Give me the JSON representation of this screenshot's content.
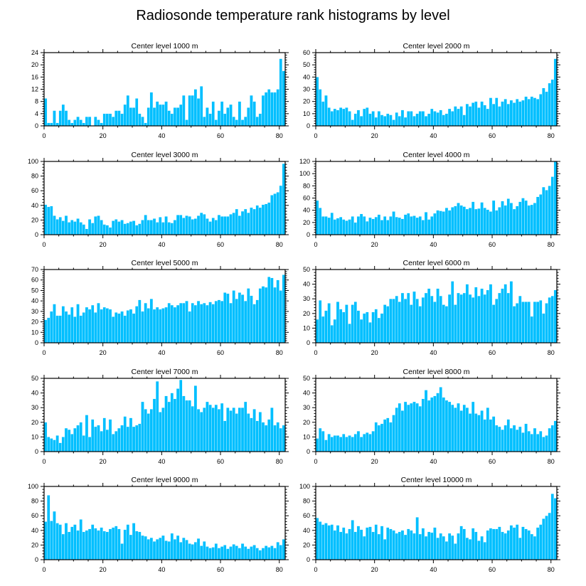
{
  "title": "Radiosonde temperature rank histograms by level",
  "colors": {
    "bar": "#00BFFF",
    "axis": "#000000",
    "background": "#ffffff"
  },
  "chart_data": [
    {
      "type": "bar",
      "title": "Center level 1000 m",
      "xlim": [
        0,
        82
      ],
      "ylim": [
        0,
        24
      ],
      "yticks": [
        0,
        4,
        8,
        12,
        16,
        20,
        24
      ],
      "xticks": [
        0,
        20,
        40,
        60,
        80
      ],
      "values": [
        9,
        1,
        1,
        5,
        1,
        5,
        7,
        5,
        2,
        1,
        2,
        3,
        2,
        1,
        3,
        3,
        0,
        3,
        2,
        1,
        4,
        4,
        4,
        3,
        5,
        5,
        4,
        7,
        10,
        6,
        6,
        9,
        4,
        3,
        1,
        6,
        11,
        6,
        8,
        7,
        7,
        8,
        5,
        4,
        6,
        6,
        7,
        10,
        2,
        10,
        10,
        12,
        9,
        13,
        3,
        6,
        4,
        8,
        2,
        5,
        8,
        4,
        6,
        7,
        3,
        2,
        8,
        2,
        3,
        6,
        10,
        8,
        3,
        4,
        10,
        11,
        12,
        11,
        11,
        12,
        22,
        18
      ],
      "xlabel": "",
      "ylabel": ""
    },
    {
      "type": "bar",
      "title": "Center level 2000 m",
      "xlim": [
        0,
        82
      ],
      "ylim": [
        0,
        60
      ],
      "yticks": [
        0,
        10,
        20,
        30,
        40,
        50,
        60
      ],
      "xticks": [
        0,
        20,
        40,
        60,
        80
      ],
      "values": [
        40,
        30,
        20,
        25,
        15,
        12,
        14,
        13,
        15,
        14,
        15,
        12,
        5,
        10,
        13,
        8,
        14,
        15,
        10,
        12,
        7,
        12,
        9,
        8,
        10,
        9,
        5,
        11,
        8,
        13,
        7,
        12,
        12,
        8,
        10,
        12,
        12,
        8,
        10,
        14,
        12,
        11,
        13,
        9,
        10,
        14,
        12,
        16,
        14,
        16,
        9,
        18,
        16,
        19,
        20,
        15,
        20,
        17,
        14,
        23,
        18,
        23,
        16,
        20,
        22,
        18,
        21,
        19,
        22,
        20,
        21,
        24,
        22,
        24,
        23,
        22,
        26,
        31,
        28,
        35,
        38,
        55
      ],
      "xlabel": "",
      "ylabel": ""
    },
    {
      "type": "bar",
      "title": "Center level 3000 m",
      "xlim": [
        0,
        82
      ],
      "ylim": [
        0,
        100
      ],
      "yticks": [
        0,
        20,
        40,
        60,
        80,
        100
      ],
      "xticks": [
        0,
        20,
        40,
        60,
        80
      ],
      "values": [
        41,
        38,
        39,
        26,
        21,
        24,
        19,
        26,
        17,
        20,
        18,
        22,
        17,
        14,
        8,
        21,
        16,
        25,
        26,
        20,
        14,
        13,
        10,
        19,
        21,
        18,
        20,
        15,
        16,
        18,
        19,
        13,
        15,
        20,
        27,
        20,
        20,
        22,
        17,
        24,
        17,
        25,
        17,
        16,
        20,
        27,
        27,
        23,
        26,
        25,
        21,
        22,
        26,
        30,
        28,
        22,
        18,
        23,
        20,
        27,
        25,
        25,
        25,
        28,
        30,
        35,
        26,
        32,
        35,
        30,
        37,
        35,
        40,
        37,
        41,
        42,
        44,
        54,
        56,
        58,
        67,
        97
      ],
      "xlabel": "",
      "ylabel": ""
    },
    {
      "type": "bar",
      "title": "Center level 4000 m",
      "xlim": [
        0,
        82
      ],
      "ylim": [
        0,
        120
      ],
      "yticks": [
        0,
        20,
        40,
        60,
        80,
        100,
        120
      ],
      "xticks": [
        0,
        20,
        40,
        60,
        80
      ],
      "values": [
        56,
        44,
        30,
        30,
        28,
        36,
        25,
        27,
        29,
        25,
        23,
        25,
        30,
        20,
        30,
        34,
        30,
        22,
        28,
        26,
        29,
        33,
        24,
        30,
        24,
        30,
        38,
        29,
        28,
        26,
        33,
        35,
        30,
        31,
        28,
        30,
        24,
        37,
        25,
        30,
        35,
        40,
        39,
        38,
        44,
        40,
        45,
        47,
        52,
        48,
        46,
        42,
        44,
        54,
        42,
        43,
        53,
        44,
        41,
        38,
        56,
        40,
        45,
        55,
        48,
        59,
        52,
        42,
        47,
        54,
        60,
        56,
        48,
        49,
        52,
        62,
        66,
        78,
        73,
        80,
        95,
        120
      ],
      "xlabel": "",
      "ylabel": ""
    },
    {
      "type": "bar",
      "title": "Center level 5000 m",
      "xlim": [
        0,
        82
      ],
      "ylim": [
        0,
        70
      ],
      "yticks": [
        0,
        10,
        20,
        30,
        40,
        50,
        60,
        70
      ],
      "xticks": [
        0,
        20,
        40,
        60,
        80
      ],
      "values": [
        22,
        24,
        30,
        37,
        26,
        26,
        35,
        30,
        27,
        34,
        25,
        37,
        26,
        29,
        34,
        32,
        36,
        29,
        38,
        32,
        34,
        33,
        32,
        25,
        29,
        28,
        30,
        26,
        31,
        32,
        28,
        35,
        41,
        30,
        38,
        33,
        42,
        32,
        34,
        32,
        33,
        34,
        38,
        36,
        34,
        36,
        38,
        38,
        40,
        30,
        38,
        36,
        40,
        37,
        38,
        36,
        39,
        37,
        40,
        41,
        40,
        48,
        47,
        38,
        50,
        42,
        48,
        46,
        40,
        52,
        45,
        37,
        41,
        52,
        54,
        53,
        63,
        62,
        53,
        60,
        50,
        65
      ],
      "xlabel": "",
      "ylabel": ""
    },
    {
      "type": "bar",
      "title": "Center level 6000 m",
      "xlim": [
        0,
        82
      ],
      "ylim": [
        0,
        50
      ],
      "yticks": [
        0,
        10,
        20,
        30,
        40,
        50
      ],
      "xticks": [
        0,
        20,
        40,
        60,
        80
      ],
      "values": [
        16,
        29,
        18,
        22,
        27,
        12,
        16,
        28,
        23,
        21,
        26,
        13,
        26,
        28,
        22,
        16,
        20,
        21,
        14,
        21,
        23,
        17,
        20,
        26,
        25,
        30,
        30,
        32,
        28,
        34,
        30,
        34,
        26,
        35,
        30,
        25,
        31,
        34,
        37,
        32,
        28,
        37,
        32,
        26,
        25,
        33,
        42,
        26,
        34,
        33,
        34,
        40,
        33,
        31,
        38,
        32,
        37,
        33,
        36,
        40,
        26,
        30,
        34,
        37,
        40,
        34,
        42,
        25,
        27,
        32,
        28,
        28,
        28,
        18,
        28,
        28,
        29,
        20,
        27,
        31,
        32,
        36
      ],
      "xlabel": "",
      "ylabel": ""
    },
    {
      "type": "bar",
      "title": "Center level 7000 m",
      "xlim": [
        0,
        82
      ],
      "ylim": [
        0,
        50
      ],
      "yticks": [
        0,
        10,
        20,
        30,
        40,
        50
      ],
      "xticks": [
        0,
        20,
        40,
        60,
        80
      ],
      "values": [
        20,
        10,
        9,
        8,
        11,
        6,
        10,
        16,
        15,
        12,
        16,
        18,
        20,
        11,
        25,
        10,
        22,
        17,
        18,
        14,
        23,
        15,
        22,
        12,
        14,
        16,
        18,
        24,
        17,
        23,
        17,
        18,
        19,
        34,
        29,
        26,
        29,
        36,
        48,
        27,
        30,
        38,
        34,
        40,
        36,
        43,
        49,
        38,
        35,
        35,
        31,
        45,
        29,
        27,
        30,
        34,
        32,
        30,
        32,
        29,
        33,
        21,
        30,
        28,
        30,
        26,
        30,
        30,
        34,
        26,
        23,
        29,
        21,
        27,
        20,
        18,
        22,
        30,
        18,
        20,
        16,
        18
      ],
      "xlabel": "",
      "ylabel": ""
    },
    {
      "type": "bar",
      "title": "Center level 8000 m",
      "xlim": [
        0,
        82
      ],
      "ylim": [
        0,
        50
      ],
      "yticks": [
        0,
        10,
        20,
        30,
        40,
        50
      ],
      "xticks": [
        0,
        20,
        40,
        60,
        80
      ],
      "values": [
        9,
        16,
        14,
        8,
        12,
        10,
        11,
        11,
        10,
        12,
        10,
        11,
        10,
        12,
        14,
        10,
        12,
        13,
        12,
        14,
        20,
        18,
        19,
        22,
        23,
        20,
        25,
        30,
        33,
        28,
        34,
        32,
        33,
        34,
        33,
        31,
        36,
        42,
        35,
        37,
        38,
        40,
        44,
        37,
        35,
        34,
        32,
        30,
        33,
        28,
        32,
        30,
        26,
        34,
        26,
        25,
        28,
        22,
        30,
        22,
        24,
        18,
        17,
        15,
        18,
        22,
        16,
        18,
        15,
        17,
        13,
        19,
        14,
        12,
        16,
        12,
        14,
        10,
        11,
        16,
        18,
        21
      ],
      "xlabel": "",
      "ylabel": ""
    },
    {
      "type": "bar",
      "title": "Center level 9000 m",
      "xlim": [
        0,
        82
      ],
      "ylim": [
        0,
        100
      ],
      "yticks": [
        0,
        20,
        40,
        60,
        80,
        100
      ],
      "xticks": [
        0,
        20,
        40,
        60,
        80
      ],
      "values": [
        52,
        88,
        53,
        66,
        50,
        48,
        35,
        50,
        38,
        45,
        48,
        40,
        55,
        38,
        40,
        42,
        48,
        43,
        40,
        44,
        39,
        38,
        42,
        44,
        46,
        42,
        22,
        41,
        48,
        34,
        50,
        39,
        38,
        33,
        32,
        28,
        30,
        25,
        28,
        30,
        33,
        26,
        25,
        36,
        28,
        33,
        24,
        30,
        27,
        22,
        21,
        24,
        29,
        19,
        25,
        18,
        16,
        17,
        22,
        16,
        18,
        20,
        15,
        18,
        21,
        19,
        16,
        22,
        18,
        15,
        18,
        20,
        16,
        13,
        16,
        19,
        17,
        19,
        16,
        24,
        20,
        28
      ],
      "xlabel": "",
      "ylabel": ""
    },
    {
      "type": "bar",
      "title": "Center level 10000 m",
      "xlim": [
        0,
        82
      ],
      "ylim": [
        0,
        100
      ],
      "yticks": [
        0,
        20,
        40,
        60,
        80,
        100
      ],
      "xticks": [
        0,
        20,
        40,
        60,
        80
      ],
      "values": [
        57,
        52,
        48,
        50,
        47,
        48,
        40,
        47,
        38,
        44,
        36,
        42,
        54,
        38,
        46,
        41,
        32,
        44,
        45,
        38,
        48,
        35,
        46,
        28,
        44,
        42,
        40,
        36,
        38,
        40,
        34,
        42,
        40,
        36,
        58,
        35,
        43,
        32,
        38,
        37,
        44,
        30,
        36,
        32,
        25,
        36,
        33,
        22,
        36,
        46,
        42,
        30,
        28,
        43,
        38,
        26,
        32,
        24,
        40,
        43,
        42,
        42,
        45,
        38,
        36,
        40,
        47,
        44,
        48,
        30,
        45,
        42,
        40,
        35,
        32,
        44,
        48,
        56,
        60,
        64,
        90,
        84
      ],
      "xlabel": "",
      "ylabel": ""
    }
  ]
}
